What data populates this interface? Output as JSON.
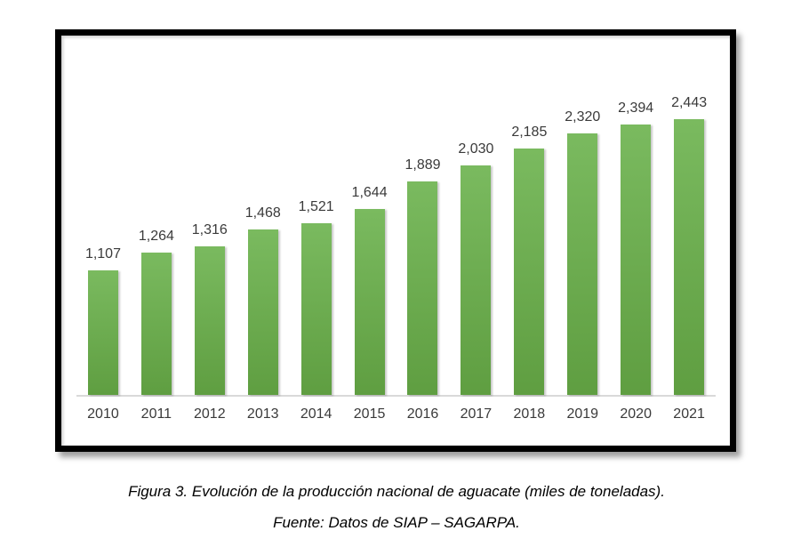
{
  "figure": {
    "caption_line1": "Figura 3. Evolución de la producción nacional de aguacate (miles de toneladas).",
    "caption_line2": "Fuente: Datos de SIAP – SAGARPA."
  },
  "chart_data": {
    "type": "bar",
    "title": "",
    "xlabel": "",
    "ylabel": "",
    "categories": [
      "2010",
      "2011",
      "2012",
      "2013",
      "2014",
      "2015",
      "2016",
      "2017",
      "2018",
      "2019",
      "2020",
      "2021"
    ],
    "values": [
      1107,
      1264,
      1316,
      1468,
      1521,
      1644,
      1889,
      2030,
      2185,
      2320,
      2394,
      2443
    ],
    "value_labels": [
      "1,107",
      "1,264",
      "1,316",
      "1,468",
      "1,521",
      "1,644",
      "1,889",
      "2,030",
      "2,185",
      "2,320",
      "2,394",
      "2,443"
    ],
    "ylim": [
      0,
      2443
    ],
    "grid": false,
    "legend": "none",
    "bar_color_top": "#7aba5f",
    "bar_color_bottom": "#5f9e41",
    "data_label_color": "#3a3a3a",
    "tick_label_color": "#3a3a3a",
    "axis_line_color": "#d9d9d9",
    "frame_border_color": "#000000"
  }
}
